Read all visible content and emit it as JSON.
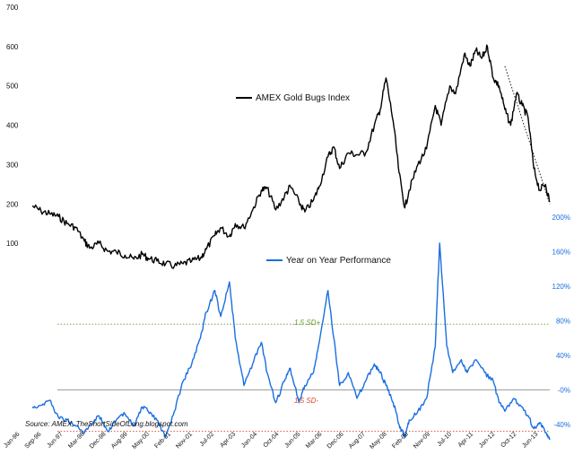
{
  "chart_data": {
    "type": "line",
    "x_tick_labels": [
      "Jan-96",
      "Sep-96",
      "Jun-97",
      "Mar-98",
      "Dec-98",
      "Aug-99",
      "May-00",
      "Feb-01",
      "Nov-01",
      "Jul-02",
      "Apr-03",
      "Jan-04",
      "Oct-04",
      "Jun-05",
      "Mar-06",
      "Dec-06",
      "Aug-07",
      "May-08",
      "Feb-09",
      "Nov-09",
      "Jul-10",
      "Apr-11",
      "Jan-12",
      "Oct-12",
      "Jun-13"
    ],
    "left_axis": {
      "ticks": [
        "700",
        "600",
        "500",
        "400",
        "300",
        "200",
        "100"
      ],
      "ylim": [
        0,
        700
      ]
    },
    "right_axis": {
      "ticks": [
        "200%",
        "160%",
        "120%",
        "80%",
        "40%",
        "-0%",
        "-40%"
      ],
      "ylim": [
        -60,
        200
      ]
    },
    "series": [
      {
        "name": "AMEX Gold Bugs Index",
        "axis": "left",
        "color": "#000000",
        "points": [
          [
            1996.0,
            195
          ],
          [
            1996.3,
            182
          ],
          [
            1996.6,
            175
          ],
          [
            1996.9,
            168
          ],
          [
            1997.2,
            150
          ],
          [
            1997.5,
            140
          ],
          [
            1997.8,
            105
          ],
          [
            1998.0,
            88
          ],
          [
            1998.3,
            100
          ],
          [
            1998.6,
            80
          ],
          [
            1998.9,
            78
          ],
          [
            1999.2,
            70
          ],
          [
            1999.5,
            60
          ],
          [
            1999.8,
            72
          ],
          [
            2000.0,
            62
          ],
          [
            2000.3,
            55
          ],
          [
            2000.6,
            48
          ],
          [
            2000.9,
            42
          ],
          [
            2001.2,
            48
          ],
          [
            2001.5,
            55
          ],
          [
            2001.8,
            62
          ],
          [
            2002.0,
            85
          ],
          [
            2002.3,
            120
          ],
          [
            2002.5,
            140
          ],
          [
            2002.8,
            118
          ],
          [
            2003.0,
            150
          ],
          [
            2003.3,
            140
          ],
          [
            2003.6,
            185
          ],
          [
            2003.9,
            235
          ],
          [
            2004.1,
            240
          ],
          [
            2004.4,
            185
          ],
          [
            2004.7,
            220
          ],
          [
            2004.9,
            245
          ],
          [
            2005.2,
            205
          ],
          [
            2005.4,
            180
          ],
          [
            2005.7,
            210
          ],
          [
            2005.9,
            245
          ],
          [
            2006.2,
            320
          ],
          [
            2006.4,
            345
          ],
          [
            2006.6,
            290
          ],
          [
            2006.9,
            330
          ],
          [
            2007.2,
            325
          ],
          [
            2007.5,
            330
          ],
          [
            2007.8,
            400
          ],
          [
            2008.0,
            440
          ],
          [
            2008.2,
            520
          ],
          [
            2008.45,
            410
          ],
          [
            2008.65,
            280
          ],
          [
            2008.85,
            190
          ],
          [
            2009.0,
            235
          ],
          [
            2009.3,
            300
          ],
          [
            2009.6,
            340
          ],
          [
            2009.9,
            450
          ],
          [
            2010.1,
            400
          ],
          [
            2010.4,
            500
          ],
          [
            2010.6,
            480
          ],
          [
            2010.9,
            580
          ],
          [
            2011.1,
            550
          ],
          [
            2011.3,
            590
          ],
          [
            2011.5,
            570
          ],
          [
            2011.7,
            600
          ],
          [
            2011.9,
            520
          ],
          [
            2012.1,
            500
          ],
          [
            2012.3,
            440
          ],
          [
            2012.5,
            400
          ],
          [
            2012.7,
            480
          ],
          [
            2012.9,
            450
          ],
          [
            2013.1,
            420
          ],
          [
            2013.3,
            290
          ],
          [
            2013.5,
            235
          ],
          [
            2013.7,
            250
          ],
          [
            2013.85,
            205
          ]
        ]
      },
      {
        "name": "Year on Year Performance",
        "axis": "right",
        "color": "#1a6ee0",
        "points": [
          [
            1996.0,
            -20
          ],
          [
            1996.3,
            -18
          ],
          [
            1996.6,
            -12
          ],
          [
            1996.9,
            -32
          ],
          [
            1997.2,
            -35
          ],
          [
            1997.5,
            -42
          ],
          [
            1997.8,
            -50
          ],
          [
            1998.0,
            -40
          ],
          [
            1998.3,
            -30
          ],
          [
            1998.6,
            -48
          ],
          [
            1998.9,
            -35
          ],
          [
            1999.2,
            -28
          ],
          [
            1999.5,
            -42
          ],
          [
            1999.8,
            -20
          ],
          [
            2000.0,
            -25
          ],
          [
            2000.3,
            -35
          ],
          [
            2000.6,
            -55
          ],
          [
            2000.9,
            -25
          ],
          [
            2001.2,
            10
          ],
          [
            2001.5,
            30
          ],
          [
            2001.8,
            60
          ],
          [
            2002.0,
            90
          ],
          [
            2002.3,
            115
          ],
          [
            2002.5,
            85
          ],
          [
            2002.8,
            125
          ],
          [
            2003.0,
            60
          ],
          [
            2003.3,
            5
          ],
          [
            2003.6,
            30
          ],
          [
            2003.9,
            55
          ],
          [
            2004.1,
            20
          ],
          [
            2004.4,
            -15
          ],
          [
            2004.7,
            10
          ],
          [
            2004.9,
            25
          ],
          [
            2005.2,
            -15
          ],
          [
            2005.4,
            5
          ],
          [
            2005.7,
            20
          ],
          [
            2005.9,
            55
          ],
          [
            2006.2,
            115
          ],
          [
            2006.4,
            60
          ],
          [
            2006.6,
            5
          ],
          [
            2006.9,
            20
          ],
          [
            2007.2,
            -10
          ],
          [
            2007.5,
            10
          ],
          [
            2007.8,
            30
          ],
          [
            2008.0,
            20
          ],
          [
            2008.2,
            5
          ],
          [
            2008.45,
            -15
          ],
          [
            2008.65,
            -40
          ],
          [
            2008.85,
            -55
          ],
          [
            2009.0,
            -35
          ],
          [
            2009.3,
            -25
          ],
          [
            2009.6,
            -10
          ],
          [
            2009.9,
            50
          ],
          [
            2010.05,
            170
          ],
          [
            2010.3,
            50
          ],
          [
            2010.5,
            20
          ],
          [
            2010.8,
            35
          ],
          [
            2011.0,
            20
          ],
          [
            2011.3,
            35
          ],
          [
            2011.6,
            20
          ],
          [
            2011.9,
            10
          ],
          [
            2012.1,
            -15
          ],
          [
            2012.3,
            -25
          ],
          [
            2012.6,
            -10
          ],
          [
            2012.9,
            -20
          ],
          [
            2013.1,
            -30
          ],
          [
            2013.3,
            -45
          ],
          [
            2013.5,
            -38
          ],
          [
            2013.7,
            -50
          ],
          [
            2013.85,
            -58
          ]
        ]
      }
    ],
    "reference_lines": [
      {
        "value": 76,
        "label": "1.5 SD+",
        "color": "#6a9a2a",
        "style": "dotted"
      },
      {
        "value": 0,
        "label": "",
        "color": "#888888",
        "style": "solid"
      },
      {
        "value": -48,
        "label": "1.5 SD-",
        "color": "#e0452a",
        "style": "dotted"
      }
    ],
    "trendline": {
      "points": [
        [
          2012.3,
          550
        ],
        [
          2013.85,
          200
        ]
      ],
      "color": "#000000",
      "style": "dotted"
    },
    "source_text": "Source: AMEX, TheShortSideOfLong.blogspot.com",
    "grid": false,
    "legend_placement": "inline"
  }
}
